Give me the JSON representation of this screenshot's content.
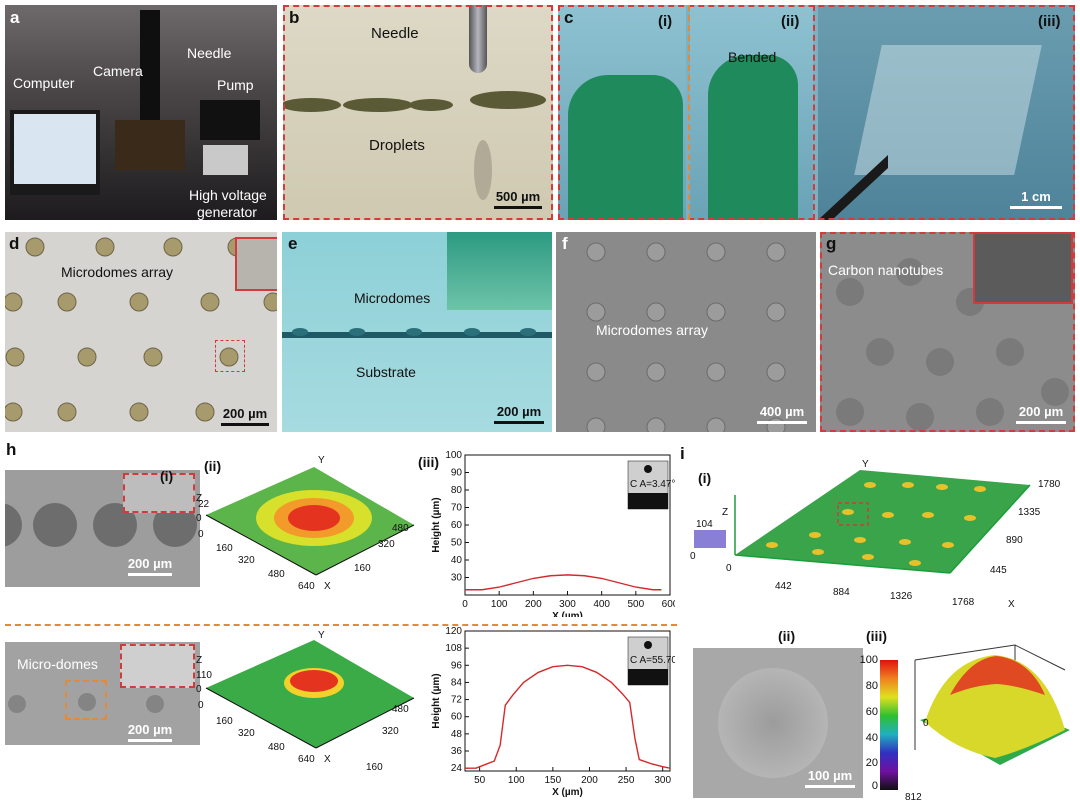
{
  "panels": {
    "a": {
      "label": "a",
      "computer": "Computer",
      "camera": "Camera",
      "needle": "Needle",
      "pump": "Pump",
      "hv1": "High voltage",
      "hv2": "generator"
    },
    "b": {
      "label": "b",
      "needle": "Needle",
      "droplets": "Droplets",
      "scale": "500 µm"
    },
    "c": {
      "label": "c",
      "i": "(i)",
      "ii": "(ii)",
      "iii": "(iii)",
      "bended": "Bended",
      "scale": "1 cm"
    },
    "d": {
      "label": "d",
      "caption": "Microdomes array",
      "scale": "200 µm"
    },
    "e": {
      "label": "e",
      "microdomes": "Microdomes",
      "substrate": "Substrate",
      "scale": "200 µm"
    },
    "f": {
      "label": "f",
      "caption": "Microdomes array",
      "scale": "400 µm"
    },
    "g": {
      "label": "g",
      "caption": "Carbon nanotubes",
      "scale": "200 µm"
    },
    "h": {
      "label": "h",
      "i": "(i)",
      "ii": "(ii)",
      "iii": "(iii)",
      "scale_top": "200 µm",
      "scale_bottom": "200 µm",
      "microdomes": "Micro-domes",
      "top3d": {
        "y": "Y",
        "z": "Z",
        "x": "X",
        "z1": "22",
        "z0": "0",
        "o": "0",
        "xt": [
          "160",
          "320",
          "480",
          "640"
        ],
        "yt": [
          "160",
          "320",
          "480"
        ]
      },
      "bot3d": {
        "y": "Y",
        "z": "Z",
        "x": "X",
        "z1": "110",
        "z0": "0",
        "o": "0",
        "xt": [
          "160",
          "320",
          "480",
          "640"
        ],
        "yt": [
          "160",
          "320",
          "480"
        ]
      },
      "ca_top": "C A=3.47°",
      "ca_bot": "C A=55.70°"
    },
    "i": {
      "label": "i",
      "i": "(i)",
      "ii": "(ii)",
      "iii": "(iii)",
      "scale": "100 µm",
      "map3d": {
        "y": "Y",
        "z": "Z",
        "x": "X",
        "z1": "104",
        "z0": "0",
        "o": "0",
        "xt": [
          "442",
          "884",
          "1326",
          "1768"
        ],
        "yt": [
          "445",
          "890",
          "1335",
          "1780"
        ]
      },
      "colorbar": [
        "100",
        "80",
        "60",
        "40",
        "20",
        "0"
      ],
      "dome": {
        "o": "0",
        "x": "812"
      }
    }
  },
  "chart_data": [
    {
      "type": "line",
      "xlabel": "X (µm)",
      "ylabel": "Height (µm)",
      "xlim": [
        0,
        600
      ],
      "ylim": [
        20,
        100
      ],
      "xticks": [
        0,
        100,
        200,
        300,
        400,
        500,
        600
      ],
      "yticks": [
        30,
        40,
        50,
        60,
        70,
        80,
        90,
        100
      ],
      "series": [
        {
          "color": "#d42a2a",
          "x": [
            0,
            50,
            100,
            150,
            200,
            250,
            300,
            350,
            400,
            450,
            500,
            550,
            575
          ],
          "y": [
            23,
            23,
            24.5,
            27,
            29.5,
            31,
            31.5,
            31,
            29.5,
            27,
            24.5,
            23,
            23
          ]
        }
      ]
    },
    {
      "type": "line",
      "xlabel": "X (µm)",
      "ylabel": "Height (µm)",
      "xlim": [
        30,
        310
      ],
      "ylim": [
        22,
        120
      ],
      "xticks": [
        50,
        100,
        150,
        200,
        250,
        300
      ],
      "yticks": [
        24,
        36,
        48,
        60,
        72,
        84,
        96,
        108,
        120
      ],
      "series": [
        {
          "color": "#d42a2a",
          "x": [
            30,
            45,
            55,
            70,
            78,
            85,
            95,
            110,
            130,
            150,
            170,
            190,
            210,
            230,
            245,
            255,
            262,
            268,
            285,
            300,
            310
          ],
          "y": [
            24,
            24,
            26,
            29,
            40,
            68,
            75,
            84,
            91,
            95,
            96,
            95,
            91,
            84,
            76,
            70,
            45,
            30,
            27,
            25,
            24
          ]
        }
      ]
    }
  ]
}
